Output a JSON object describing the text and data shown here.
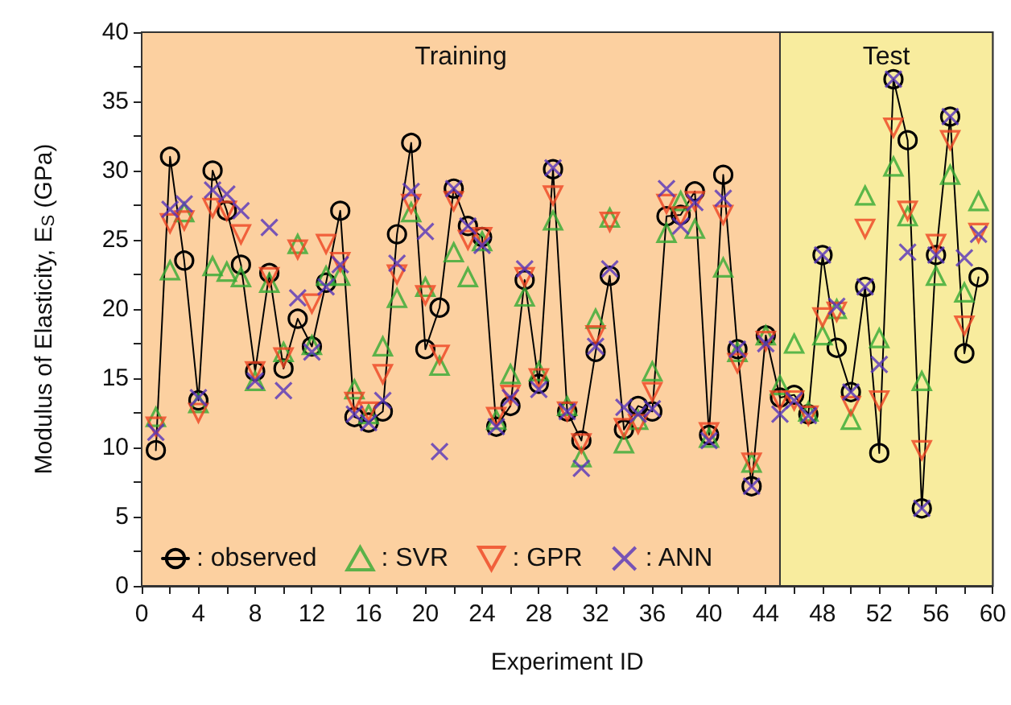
{
  "chart_data": {
    "type": "scatter",
    "xlabel": "Experiment ID",
    "ylabel": "Modulus of Elasticity, E$_{S}$ (GPa)",
    "x": [
      1,
      2,
      3,
      4,
      5,
      6,
      7,
      8,
      9,
      10,
      11,
      12,
      13,
      14,
      15,
      16,
      17,
      18,
      19,
      20,
      21,
      22,
      23,
      24,
      25,
      26,
      27,
      28,
      29,
      30,
      31,
      32,
      33,
      34,
      35,
      36,
      37,
      38,
      39,
      40,
      41,
      42,
      43,
      44,
      45,
      46,
      47,
      48,
      49,
      50,
      51,
      52,
      53,
      54,
      55,
      56,
      57,
      58,
      59
    ],
    "series": [
      {
        "name": ": observed",
        "type": "line",
        "marker": "circle",
        "color": "#000000",
        "values": [
          9.8,
          31.0,
          23.5,
          13.4,
          30.0,
          27.1,
          23.2,
          15.5,
          22.6,
          15.7,
          19.3,
          17.3,
          21.9,
          27.1,
          12.2,
          11.8,
          12.6,
          25.4,
          32.0,
          17.1,
          20.1,
          28.7,
          26.0,
          25.2,
          11.5,
          13.0,
          22.1,
          14.6,
          30.1,
          12.6,
          10.5,
          16.9,
          22.4,
          11.3,
          13.0,
          12.6,
          26.7,
          26.8,
          28.5,
          10.9,
          29.7,
          17.1,
          7.2,
          18.1,
          13.6,
          13.8,
          12.4,
          23.9,
          17.2,
          14.0,
          21.6,
          9.6,
          36.6,
          32.2,
          5.6,
          23.9,
          33.9,
          16.8,
          22.3
        ]
      },
      {
        "name": ": SVR",
        "marker": "triangle",
        "color": "#33aa33",
        "values": [
          12.2,
          22.8,
          27.0,
          13.2,
          23.1,
          22.7,
          22.3,
          14.8,
          21.9,
          16.9,
          24.7,
          17.4,
          22.4,
          22.4,
          14.2,
          12.4,
          17.3,
          20.8,
          27.0,
          21.6,
          15.9,
          24.1,
          22.3,
          24.9,
          12.0,
          15.3,
          20.9,
          15.5,
          26.4,
          13.0,
          9.3,
          19.3,
          26.6,
          10.3,
          12.0,
          15.5,
          25.5,
          27.8,
          25.8,
          10.7,
          23.0,
          16.9,
          8.9,
          18.1,
          14.5,
          17.5,
          12.6,
          18.1,
          20.0,
          12.0,
          28.2,
          17.9,
          30.3,
          26.7,
          14.8,
          22.4,
          29.7,
          21.2,
          27.8
        ]
      },
      {
        "name": ": GPR",
        "marker": "triangle-down",
        "color": "#ee4422",
        "values": [
          11.5,
          26.2,
          26.4,
          12.5,
          27.3,
          27.1,
          25.4,
          15.5,
          22.3,
          16.5,
          24.3,
          20.4,
          24.7,
          23.4,
          13.3,
          12.6,
          15.3,
          22.5,
          27.6,
          21.0,
          16.7,
          27.8,
          25.0,
          25.2,
          12.2,
          13.8,
          22.3,
          15.0,
          28.2,
          12.6,
          10.3,
          18.1,
          26.3,
          11.4,
          11.7,
          14.0,
          27.6,
          26.7,
          27.8,
          11.1,
          26.8,
          16.1,
          8.9,
          17.7,
          13.4,
          13.4,
          12.3,
          19.4,
          19.8,
          13.0,
          25.8,
          13.4,
          33.1,
          27.1,
          9.8,
          24.7,
          32.2,
          18.8,
          25.5
        ]
      },
      {
        "name": ": ANN",
        "marker": "cross",
        "color": "#5533bb",
        "values": [
          11.1,
          27.2,
          27.6,
          13.6,
          28.6,
          28.3,
          27.1,
          14.8,
          25.9,
          14.1,
          20.8,
          16.9,
          21.6,
          23.2,
          12.4,
          11.8,
          13.4,
          23.3,
          28.5,
          25.6,
          9.7,
          28.7,
          26.0,
          24.6,
          11.5,
          13.6,
          22.9,
          14.2,
          30.2,
          12.6,
          8.5,
          17.3,
          22.9,
          12.9,
          12.4,
          12.8,
          28.7,
          26.0,
          27.7,
          10.5,
          28.0,
          17.1,
          7.2,
          17.5,
          12.4,
          13.4,
          12.3,
          23.9,
          20.2,
          14.0,
          21.6,
          16.0,
          36.6,
          24.1,
          5.6,
          23.9,
          33.9,
          23.7,
          25.4
        ]
      }
    ],
    "xlim": [
      0,
      60
    ],
    "xticks": [
      0,
      {
        "value": 2,
        "label": null
      },
      4,
      {
        "value": 6,
        "label": null
      },
      8,
      {
        "value": 10,
        "label": null
      },
      12,
      {
        "value": 14,
        "label": null
      },
      16,
      {
        "value": 18,
        "label": null
      },
      20,
      {
        "value": 22,
        "label": null
      },
      24,
      {
        "value": 26,
        "label": null
      },
      28,
      {
        "value": 30,
        "label": null
      },
      32,
      {
        "value": 34,
        "label": null
      },
      36,
      {
        "value": 38,
        "label": null
      },
      40,
      {
        "value": 42,
        "label": null
      },
      44,
      {
        "value": 46,
        "label": null
      },
      48,
      {
        "value": 50,
        "label": null
      },
      52,
      {
        "value": 54,
        "label": null
      },
      56,
      {
        "value": 58,
        "label": null
      },
      60
    ],
    "ylim": [
      0,
      40
    ],
    "yticks": [
      0,
      {
        "value": 2.5,
        "label": null
      },
      5,
      {
        "value": 7.5,
        "label": null
      },
      10,
      {
        "value": 12.5,
        "label": null
      },
      15,
      {
        "value": 17.5,
        "label": null
      },
      20,
      {
        "value": 22.5,
        "label": null
      },
      25,
      {
        "value": 27.5,
        "label": null
      },
      30,
      {
        "value": 32.5,
        "label": null
      },
      35,
      {
        "value": 37.5,
        "label": null
      },
      40
    ],
    "bands": [
      {
        "axis": "x",
        "from": 0,
        "to": 45,
        "label": "Training",
        "color": "#fcd0a0"
      },
      {
        "axis": "x",
        "from": 45,
        "to": 60,
        "label": "Test",
        "color": "#f8ec9e"
      }
    ],
    "legend": "bottom left"
  }
}
